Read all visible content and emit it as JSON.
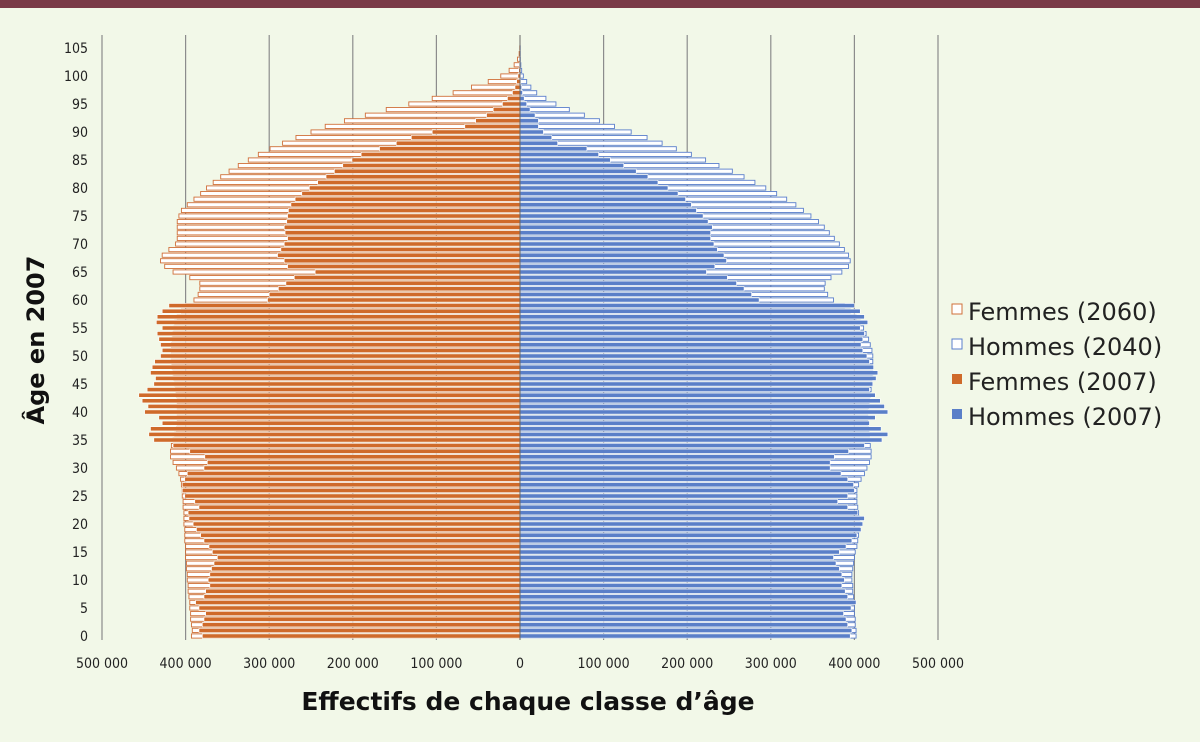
{
  "chart_data": {
    "type": "bar",
    "orientation": "horizontal-pyramid",
    "xlabel": "Effectifs de chaque classe d’âge",
    "ylabel": "Âge en 2007",
    "xlim": [
      -500000,
      500000
    ],
    "ylim": [
      0,
      105
    ],
    "x_ticks": [
      -500000,
      -400000,
      -300000,
      -200000,
      -100000,
      0,
      100000,
      200000,
      300000,
      400000,
      500000
    ],
    "x_tick_labels": [
      "500 000",
      "400 000",
      "300 000",
      "200 000",
      "100 000",
      "0",
      "100 000",
      "200 000",
      "300 000",
      "400 000",
      "500 000"
    ],
    "y_ticks": [
      0,
      5,
      10,
      15,
      20,
      25,
      30,
      35,
      40,
      45,
      50,
      55,
      60,
      65,
      70,
      75,
      80,
      85,
      90,
      95,
      100,
      105
    ],
    "grid": true,
    "legend_position": "right",
    "legend": [
      {
        "label": "Femmes (2060)",
        "style": "outline",
        "color": "#d0703a"
      },
      {
        "label": "Hommes (2040)",
        "style": "outline",
        "color": "#5b7fcc"
      },
      {
        "label": "Femmes (2007)",
        "style": "filled",
        "color": "#cf6a2a"
      },
      {
        "label": "Hommes (2007)",
        "style": "filled",
        "color": "#5a7fc8"
      }
    ],
    "ages": [
      0,
      1,
      2,
      3,
      4,
      5,
      6,
      7,
      8,
      9,
      10,
      11,
      12,
      13,
      14,
      15,
      16,
      17,
      18,
      19,
      20,
      21,
      22,
      23,
      24,
      25,
      26,
      27,
      28,
      29,
      30,
      31,
      32,
      33,
      34,
      35,
      36,
      37,
      38,
      39,
      40,
      41,
      42,
      43,
      44,
      45,
      46,
      47,
      48,
      49,
      50,
      51,
      52,
      53,
      54,
      55,
      56,
      57,
      58,
      59,
      60,
      61,
      62,
      63,
      64,
      65,
      66,
      67,
      68,
      69,
      70,
      71,
      72,
      73,
      74,
      75,
      76,
      77,
      78,
      79,
      80,
      81,
      82,
      83,
      84,
      85,
      86,
      87,
      88,
      89,
      90,
      91,
      92,
      93,
      94,
      95,
      96,
      97,
      98,
      99,
      100,
      101,
      102,
      103,
      104,
      105
    ],
    "series": [
      {
        "name": "Femmes (2060)",
        "side": "left",
        "values": [
          393000,
          392000,
          393000,
          394000,
          394000,
          395000,
          395000,
          396000,
          397000,
          397000,
          398000,
          398000,
          399000,
          399000,
          400000,
          400000,
          400000,
          401000,
          401000,
          401000,
          402000,
          402000,
          402000,
          403000,
          403000,
          404000,
          404000,
          405000,
          406000,
          408000,
          411000,
          415000,
          418000,
          418000,
          417000,
          415000,
          413000,
          411000,
          410000,
          410000,
          410000,
          410000,
          410000,
          411000,
          412000,
          413000,
          414000,
          415000,
          416000,
          417000,
          417000,
          417000,
          417000,
          416000,
          415000,
          414000,
          413000,
          410000,
          405000,
          400000,
          390000,
          385000,
          383000,
          383000,
          395000,
          415000,
          425000,
          430000,
          428000,
          420000,
          412000,
          410000,
          410000,
          410000,
          410000,
          408000,
          405000,
          398000,
          390000,
          382000,
          375000,
          367000,
          358000,
          348000,
          337000,
          325000,
          313000,
          299000,
          284000,
          268000,
          250000,
          233000,
          210000,
          185000,
          160000,
          133000,
          105000,
          80000,
          58000,
          38000,
          23000,
          13000,
          7000,
          3000,
          1000,
          300
        ]
      },
      {
        "name": "Hommes (2040)",
        "side": "right",
        "values": [
          402000,
          402000,
          401000,
          401000,
          400000,
          400000,
          399000,
          399000,
          398000,
          398000,
          397000,
          397000,
          398000,
          399000,
          400000,
          401000,
          403000,
          404000,
          405000,
          406000,
          407000,
          406000,
          405000,
          404000,
          403000,
          403000,
          403000,
          405000,
          408000,
          412000,
          415000,
          418000,
          420000,
          420000,
          419000,
          418000,
          418000,
          417000,
          416000,
          416000,
          416000,
          417000,
          418000,
          419000,
          420000,
          421000,
          421000,
          422000,
          422000,
          422000,
          422000,
          421000,
          419000,
          417000,
          414000,
          411000,
          407000,
          402000,
          395000,
          388000,
          375000,
          368000,
          364000,
          365000,
          372000,
          385000,
          393000,
          395000,
          393000,
          388000,
          382000,
          376000,
          370000,
          364000,
          357000,
          348000,
          339000,
          330000,
          319000,
          307000,
          294000,
          281000,
          268000,
          254000,
          238000,
          222000,
          205000,
          187000,
          170000,
          152000,
          133000,
          113000,
          95000,
          77000,
          59000,
          43000,
          31000,
          20000,
          13000,
          8000,
          4000,
          2000,
          1000,
          500,
          200,
          100
        ]
      },
      {
        "name": "Femmes (2007)",
        "side": "left",
        "values": [
          380000,
          384000,
          380000,
          378000,
          376000,
          384000,
          388000,
          378000,
          376000,
          371000,
          373000,
          371000,
          369000,
          366000,
          362000,
          368000,
          372000,
          378000,
          382000,
          387000,
          391000,
          396000,
          397000,
          384000,
          389000,
          401000,
          404000,
          404000,
          401000,
          398000,
          378000,
          374000,
          377000,
          395000,
          415000,
          438000,
          444000,
          442000,
          428000,
          432000,
          449000,
          445000,
          452000,
          456000,
          446000,
          438000,
          436000,
          442000,
          440000,
          437000,
          430000,
          428000,
          430000,
          432000,
          434000,
          428000,
          435000,
          434000,
          428000,
          420000,
          302000,
          300000,
          289000,
          280000,
          270000,
          245000,
          278000,
          282000,
          290000,
          286000,
          282000,
          278000,
          281000,
          282000,
          279000,
          278000,
          277000,
          274000,
          269000,
          261000,
          252000,
          242000,
          232000,
          222000,
          212000,
          201000,
          190000,
          168000,
          148000,
          130000,
          105000,
          66000,
          53000,
          40000,
          32000,
          21000,
          15000,
          9000,
          6000,
          4000,
          2500,
          1500,
          800,
          400,
          200,
          100
        ]
      },
      {
        "name": "Hommes (2007)",
        "side": "right",
        "values": [
          395000,
          397000,
          392000,
          390000,
          387000,
          396000,
          402000,
          392000,
          389000,
          385000,
          388000,
          385000,
          382000,
          378000,
          375000,
          382000,
          390000,
          397000,
          403000,
          408000,
          410000,
          412000,
          404000,
          392000,
          380000,
          392000,
          400000,
          399000,
          392000,
          384000,
          371000,
          371000,
          376000,
          393000,
          412000,
          433000,
          440000,
          432000,
          418000,
          425000,
          440000,
          436000,
          431000,
          425000,
          418000,
          422000,
          426000,
          428000,
          423000,
          418000,
          415000,
          410000,
          408000,
          410000,
          412000,
          407000,
          416000,
          412000,
          407000,
          400000,
          286000,
          277000,
          268000,
          259000,
          248000,
          223000,
          233000,
          247000,
          244000,
          236000,
          232000,
          228000,
          228000,
          230000,
          225000,
          219000,
          211000,
          205000,
          198000,
          189000,
          177000,
          165000,
          153000,
          139000,
          124000,
          108000,
          94000,
          80000,
          45000,
          38000,
          28000,
          22000,
          22000,
          18000,
          12000,
          8000,
          5000,
          3000,
          2000,
          1000,
          500,
          300,
          200,
          100,
          50,
          20
        ]
      }
    ]
  }
}
